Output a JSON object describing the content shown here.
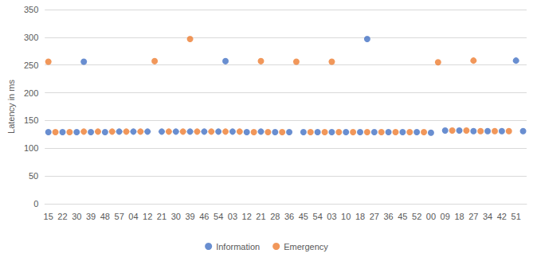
{
  "chart_data": {
    "type": "scatter",
    "y_label": "Latency in ms",
    "categories": [
      "15",
      null,
      "22",
      null,
      "30",
      null,
      "39",
      null,
      "48",
      null,
      "57",
      null,
      "04",
      null,
      "12",
      null,
      "21",
      null,
      "30",
      null,
      "39",
      null,
      "46",
      null,
      "54",
      null,
      "03",
      null,
      "12",
      null,
      "21",
      null,
      "28",
      null,
      "36",
      null,
      "45",
      null,
      "54",
      null,
      "03",
      null,
      "10",
      null,
      "18",
      null,
      "27",
      null,
      "36",
      null,
      "45",
      null,
      "52",
      null,
      "00",
      null,
      "09",
      null,
      "18",
      null,
      "27",
      null,
      "34",
      null,
      "42",
      null,
      "51",
      null
    ],
    "series": [
      {
        "name": "Information",
        "color": "#4472c4",
        "marker": "circle",
        "values": [
          129,
          null,
          129,
          null,
          129,
          256,
          129,
          null,
          129,
          null,
          130,
          null,
          130,
          null,
          130,
          null,
          130,
          null,
          130,
          null,
          130,
          null,
          130,
          null,
          130,
          257,
          130,
          null,
          129,
          null,
          130,
          null,
          129,
          null,
          129,
          null,
          129,
          null,
          129,
          null,
          129,
          null,
          129,
          null,
          129,
          297,
          129,
          null,
          129,
          null,
          129,
          null,
          129,
          null,
          128,
          null,
          132,
          null,
          132,
          null,
          131,
          null,
          131,
          null,
          131,
          null,
          258,
          131
        ]
      },
      {
        "name": "Emergency",
        "color": "#ed7d31",
        "marker": "circle",
        "values": [
          256,
          129,
          null,
          129,
          null,
          130,
          null,
          130,
          null,
          130,
          null,
          130,
          null,
          130,
          null,
          257,
          null,
          130,
          null,
          130,
          297,
          130,
          null,
          130,
          null,
          130,
          null,
          130,
          null,
          129,
          257,
          129,
          null,
          129,
          null,
          256,
          null,
          129,
          null,
          129,
          256,
          129,
          null,
          129,
          null,
          129,
          null,
          129,
          null,
          129,
          null,
          129,
          null,
          129,
          null,
          255,
          null,
          132,
          null,
          132,
          258,
          131,
          null,
          131,
          null,
          131,
          null,
          null
        ]
      }
    ],
    "ylim": [
      0,
      350
    ],
    "yticks": [
      0,
      50,
      100,
      150,
      200,
      250,
      300,
      350
    ],
    "grid": true,
    "legend": "bottom"
  }
}
